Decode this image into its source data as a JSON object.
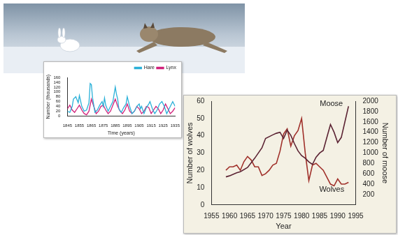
{
  "chart_data": [
    {
      "type": "line",
      "x_label": "Time (years)",
      "y_label": "Number (thousands)",
      "xlim": [
        1845,
        1935
      ],
      "xticks": [
        1845,
        1855,
        1865,
        1875,
        1885,
        1895,
        1905,
        1915,
        1925,
        1935
      ],
      "ylim": [
        0,
        160
      ],
      "yticks": [
        0,
        20,
        40,
        60,
        80,
        100,
        120,
        140,
        160
      ],
      "grid": false,
      "legend": "top-right",
      "series": [
        {
          "name": "Hare",
          "color": "#2ab0d8",
          "x": [
            1845,
            1847,
            1849,
            1850,
            1852,
            1854,
            1855,
            1857,
            1859,
            1861,
            1863,
            1864,
            1865,
            1866,
            1868,
            1870,
            1872,
            1874,
            1875,
            1876,
            1877,
            1879,
            1881,
            1883,
            1885,
            1886,
            1887,
            1888,
            1890,
            1892,
            1894,
            1895,
            1897,
            1899,
            1901,
            1903,
            1905,
            1906,
            1907,
            1909,
            1911,
            1913,
            1914,
            1916,
            1918,
            1920,
            1922,
            1924,
            1926,
            1928,
            1930,
            1933,
            1935
          ],
          "values": [
            20,
            15,
            40,
            70,
            80,
            55,
            85,
            40,
            20,
            25,
            55,
            135,
            130,
            75,
            15,
            25,
            45,
            60,
            40,
            75,
            45,
            20,
            40,
            60,
            120,
            90,
            70,
            30,
            15,
            35,
            50,
            80,
            40,
            10,
            20,
            40,
            50,
            30,
            40,
            10,
            35,
            50,
            60,
            30,
            10,
            25,
            50,
            60,
            40,
            10,
            30,
            60,
            40
          ]
        },
        {
          "name": "Lynx",
          "color": "#d0207a",
          "x": [
            1845,
            1847,
            1849,
            1851,
            1853,
            1855,
            1857,
            1859,
            1861,
            1863,
            1865,
            1867,
            1869,
            1871,
            1873,
            1875,
            1877,
            1879,
            1881,
            1883,
            1885,
            1887,
            1889,
            1891,
            1893,
            1895,
            1897,
            1899,
            1901,
            1903,
            1905,
            1907,
            1909,
            1911,
            1913,
            1915,
            1917,
            1919,
            1921,
            1923,
            1925,
            1927,
            1929,
            1931,
            1933,
            1935
          ],
          "values": [
            30,
            45,
            25,
            15,
            30,
            45,
            25,
            10,
            5,
            20,
            70,
            40,
            10,
            20,
            40,
            45,
            25,
            10,
            20,
            45,
            70,
            40,
            20,
            10,
            25,
            50,
            20,
            10,
            20,
            40,
            30,
            10,
            20,
            40,
            35,
            10,
            25,
            40,
            30,
            10,
            25,
            50,
            30,
            10,
            20,
            35
          ]
        }
      ]
    },
    {
      "type": "line",
      "x_label": "Year",
      "y_label": "Number of wolves",
      "y2_label": "Number of moose",
      "xlim": [
        1955,
        1995
      ],
      "xticks": [
        1955,
        1960,
        1965,
        1970,
        1975,
        1980,
        1985,
        1990,
        1995
      ],
      "ylim": [
        0,
        60
      ],
      "yticks": [
        0,
        10,
        20,
        30,
        40,
        50,
        60
      ],
      "y2lim": [
        0,
        2000
      ],
      "y2ticks": [
        200,
        400,
        600,
        800,
        1000,
        1200,
        1400,
        1600,
        1800,
        2000
      ],
      "grid": false,
      "series": [
        {
          "name": "Moose",
          "color": "#5b2333",
          "axis": "y2",
          "x": [
            1959,
            1960,
            1962,
            1963,
            1965,
            1967,
            1969,
            1970,
            1972,
            1973,
            1974,
            1975,
            1976,
            1977,
            1978,
            1979,
            1980,
            1981,
            1982,
            1983,
            1984,
            1985,
            1986,
            1987,
            1988,
            1989,
            1990,
            1991,
            1992,
            1993
          ],
          "values": [
            540,
            560,
            620,
            640,
            720,
            900,
            1100,
            1280,
            1350,
            1380,
            1400,
            1280,
            1440,
            1340,
            1180,
            1040,
            950,
            900,
            830,
            780,
            920,
            1000,
            1050,
            1300,
            1550,
            1400,
            1200,
            1300,
            1600,
            1900
          ]
        },
        {
          "name": "Wolves",
          "color": "#a0302a",
          "x": [
            1959,
            1960,
            1961,
            1962,
            1963,
            1964,
            1965,
            1966,
            1967,
            1968,
            1969,
            1970,
            1971,
            1972,
            1973,
            1974,
            1975,
            1976,
            1977,
            1978,
            1979,
            1980,
            1981,
            1982,
            1983,
            1984,
            1985,
            1986,
            1987,
            1988,
            1989,
            1990,
            1991,
            1992,
            1993
          ],
          "values": [
            20,
            22,
            22,
            23,
            20,
            25,
            28,
            26,
            22,
            22,
            17,
            18,
            20,
            23,
            24,
            31,
            41,
            44,
            34,
            40,
            43,
            50,
            30,
            14,
            23,
            24,
            22,
            20,
            16,
            12,
            11,
            15,
            12,
            12,
            13
          ]
        }
      ]
    }
  ]
}
